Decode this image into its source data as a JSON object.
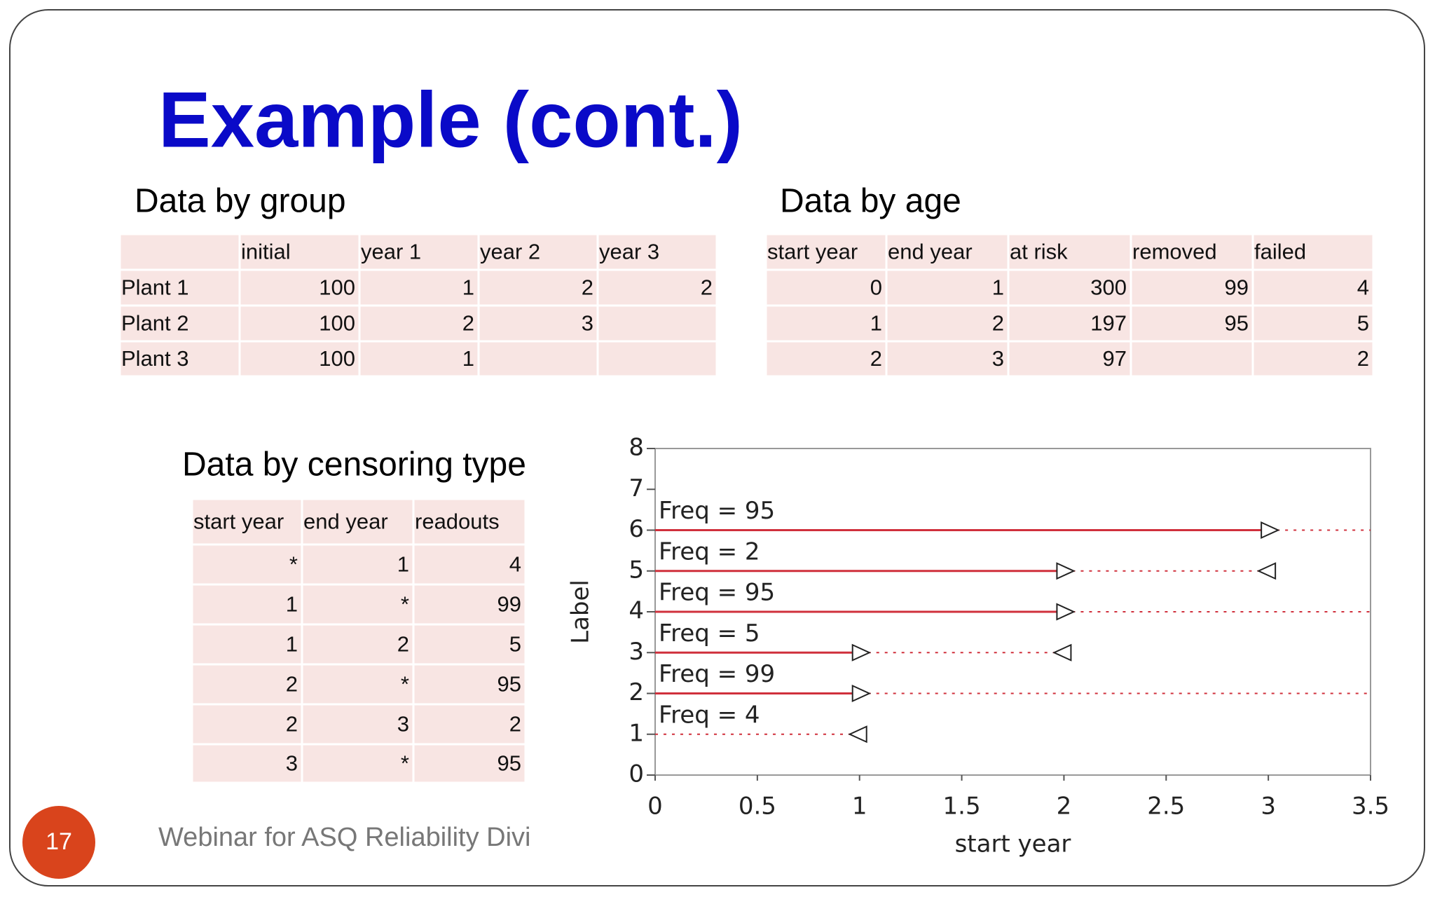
{
  "slide_number": "17",
  "title": "Example (cont.)",
  "footer": "Webinar for ASQ Reliability Divi",
  "tables": [
    {
      "title": "Data by group",
      "header": [
        null,
        "initial",
        "year 1",
        "year 2",
        "year 3"
      ],
      "rows": [
        [
          "Plant 1",
          100,
          1,
          2,
          2
        ],
        [
          "Plant 2",
          100,
          2,
          3,
          null
        ],
        [
          "Plant 3",
          100,
          1,
          null,
          null
        ]
      ]
    },
    {
      "title": "Data by age",
      "header": [
        "start year",
        "end year",
        "at risk",
        "removed",
        "failed"
      ],
      "rows": [
        [
          0,
          1,
          300,
          99,
          4
        ],
        [
          1,
          2,
          197,
          95,
          5
        ],
        [
          2,
          3,
          97,
          null,
          2
        ]
      ]
    },
    {
      "title": "Data by censoring type",
      "header": [
        "start year",
        "end year",
        "readouts"
      ],
      "rows": [
        [
          "*",
          1,
          4
        ],
        [
          1,
          "*",
          99
        ],
        [
          1,
          2,
          5
        ],
        [
          2,
          "*",
          95
        ],
        [
          2,
          3,
          2
        ],
        [
          3,
          "*",
          95
        ]
      ]
    }
  ],
  "chart_data": {
    "type": "interval",
    "x_label": "start year",
    "y_label": "Label",
    "labels": [
      1,
      2,
      3,
      4,
      5,
      6
    ],
    "start": [
      null,
      1,
      1,
      2,
      2,
      3
    ],
    "end": [
      1,
      null,
      2,
      null,
      3,
      null
    ],
    "annotations": [
      "Freq = 4",
      "Freq = 99",
      "Freq = 5",
      "Freq = 95",
      "Freq = 2",
      "Freq = 95"
    ],
    "color": "#d0303c",
    "xlim": [
      0,
      3.5
    ],
    "xticks": [
      0,
      0.5,
      1,
      1.5,
      2,
      2.5,
      3,
      3.5
    ],
    "ylim": [
      0,
      8
    ],
    "yticks": [
      0,
      1,
      2,
      3,
      4,
      5,
      6,
      7,
      8
    ]
  }
}
